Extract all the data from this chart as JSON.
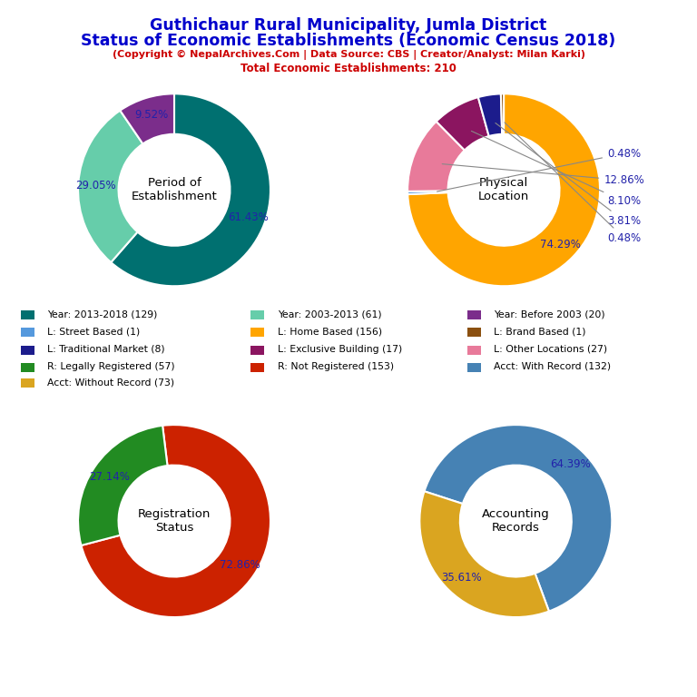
{
  "title_line1": "Guthichaur Rural Municipality, Jumla District",
  "title_line2": "Status of Economic Establishments (Economic Census 2018)",
  "subtitle1": "(Copyright © NepalArchives.Com | Data Source: CBS | Creator/Analyst: Milan Karki)",
  "subtitle2": "Total Economic Establishments: 210",
  "title_color": "#0000CC",
  "subtitle_color": "#CC0000",
  "pie1_label": "Period of\nEstablishment",
  "pie1_values": [
    61.43,
    29.05,
    9.52
  ],
  "pie1_colors": [
    "#007070",
    "#66CDAA",
    "#7B2D8B"
  ],
  "pie1_labels": [
    "61.43%",
    "29.05%",
    "9.52%"
  ],
  "pie1_startangle": 90,
  "pie2_label": "Physical\nLocation",
  "pie2_values": [
    74.29,
    0.48,
    12.86,
    8.1,
    3.81,
    0.48
  ],
  "pie2_colors": [
    "#FFA500",
    "#5599DD",
    "#E87A9A",
    "#8B1560",
    "#1C1C8C",
    "#8B5010"
  ],
  "pie2_labels": [
    "74.29%",
    "0.48%",
    "12.86%",
    "8.10%",
    "3.81%",
    "0.48%"
  ],
  "pie2_startangle": 90,
  "pie3_label": "Registration\nStatus",
  "pie3_values": [
    72.86,
    27.14
  ],
  "pie3_colors": [
    "#CC2200",
    "#228B22"
  ],
  "pie3_labels": [
    "72.86%",
    "27.14%"
  ],
  "pie3_startangle": 97,
  "pie4_label": "Accounting\nRecords",
  "pie4_values": [
    64.39,
    35.61
  ],
  "pie4_colors": [
    "#4682B4",
    "#DAA520"
  ],
  "pie4_labels": [
    "64.39%",
    "35.61%"
  ],
  "pie4_startangle": 162,
  "legend_items": [
    {
      "label": "Year: 2013-2018 (129)",
      "color": "#007070"
    },
    {
      "label": "Year: 2003-2013 (61)",
      "color": "#66CDAA"
    },
    {
      "label": "Year: Before 2003 (20)",
      "color": "#7B2D8B"
    },
    {
      "label": "L: Street Based (1)",
      "color": "#5599DD"
    },
    {
      "label": "L: Home Based (156)",
      "color": "#FFA500"
    },
    {
      "label": "L: Brand Based (1)",
      "color": "#8B5010"
    },
    {
      "label": "L: Traditional Market (8)",
      "color": "#1C1C8C"
    },
    {
      "label": "L: Exclusive Building (17)",
      "color": "#8B1560"
    },
    {
      "label": "L: Other Locations (27)",
      "color": "#E87A9A"
    },
    {
      "label": "R: Legally Registered (57)",
      "color": "#228B22"
    },
    {
      "label": "R: Not Registered (153)",
      "color": "#CC2200"
    },
    {
      "label": "Acct: With Record (132)",
      "color": "#4682B4"
    },
    {
      "label": "Acct: Without Record (73)",
      "color": "#DAA520"
    }
  ]
}
